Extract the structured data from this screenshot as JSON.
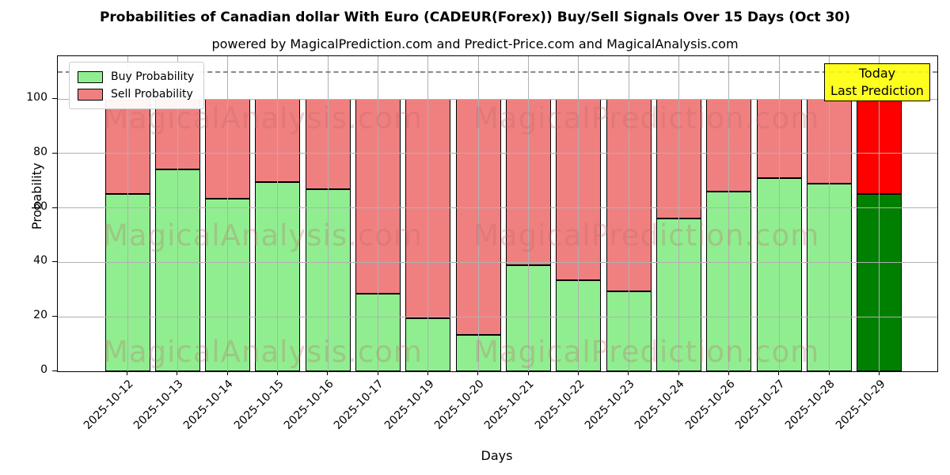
{
  "title": "Probabilities of Canadian dollar With Euro (CADEUR(Forex)) Buy/Sell Signals Over 15 Days (Oct 30)",
  "subtitle": "powered by MagicalPrediction.com and Predict-Price.com and MagicalAnalysis.com",
  "watermarks": {
    "left_text": "MagicalAnalysis.com",
    "right_text": "MagicalPrediction.com"
  },
  "annotation_box": {
    "line1": "Today",
    "line2": "Last Prediction",
    "background": "#FFFF00"
  },
  "legend": {
    "items": [
      {
        "label": "Buy Probability",
        "color": "#90EE90"
      },
      {
        "label": "Sell Probability",
        "color": "#F08080"
      }
    ]
  },
  "chart_data": {
    "type": "bar",
    "stacked": true,
    "title": "Probabilities of Canadian dollar With Euro (CADEUR(Forex)) Buy/Sell Signals Over 15 Days (Oct 30)",
    "xlabel": "Days",
    "ylabel": "Probability",
    "ylim": [
      0,
      115.7
    ],
    "yticks": [
      0,
      20,
      40,
      60,
      80,
      100
    ],
    "dashed_reference_line_y": 110,
    "grid": true,
    "legend_position": "upper left",
    "categories": [
      "2025-10-12",
      "2025-10-13",
      "2025-10-14",
      "2025-10-15",
      "2025-10-16",
      "2025-10-17",
      "2025-10-19",
      "2025-10-20",
      "2025-10-21",
      "2025-10-22",
      "2025-10-23",
      "2025-10-24",
      "2025-10-26",
      "2025-10-27",
      "2025-10-28",
      "2025-10-29"
    ],
    "series": [
      {
        "name": "Buy Probability",
        "color": "#90EE90",
        "values": [
          65,
          74,
          63.5,
          69.5,
          67,
          28.5,
          19.5,
          13.5,
          39,
          33.5,
          29.5,
          56,
          66,
          71,
          69,
          65
        ]
      },
      {
        "name": "Sell Probability",
        "color": "#F08080",
        "values": [
          35,
          26,
          36.5,
          30.5,
          33,
          71.5,
          80.5,
          86.5,
          61,
          66.5,
          70.5,
          44,
          34,
          29,
          31,
          35
        ]
      }
    ],
    "today_index": 15,
    "today_colors": {
      "buy": "#008000",
      "sell": "#FF0000"
    }
  }
}
